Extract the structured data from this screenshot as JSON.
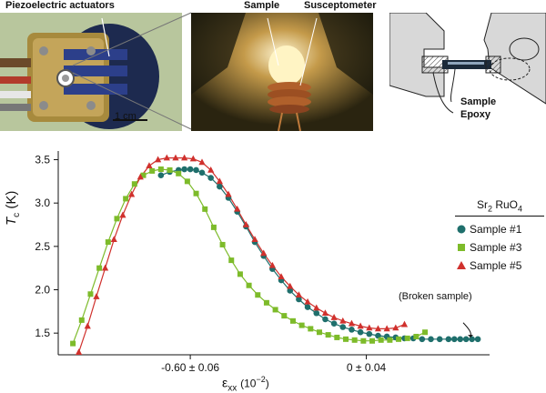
{
  "photos": {
    "left": {
      "label": "Piezoelectric actuators",
      "scale": "1 cm"
    },
    "middle": {
      "label_sample": "Sample",
      "label_susceptometer": "Susceptometer"
    },
    "right": {
      "label_sample": "Sample",
      "label_epoxy": "Epoxy"
    }
  },
  "colors": {
    "sample1": "#1f6f6c",
    "sample3": "#7dbb2a",
    "sample5": "#d0312d"
  },
  "chart_data": {
    "type": "scatter",
    "title": "",
    "ylabel_main": "T",
    "ylabel_sub": "c",
    "ylabel_unit": "(K)",
    "xlabel_main": "ε",
    "xlabel_sub": "xx",
    "xlabel_unit": "(10",
    "xlabel_exp": "−2",
    "xlabel_close": ")",
    "ylim": [
      1.25,
      3.6
    ],
    "xlim": [
      -1.05,
      0.42
    ],
    "yticks": [
      1.5,
      2.0,
      2.5,
      3.0,
      3.5
    ],
    "ytick_labels": [
      "1.5",
      "2.0",
      "2.5",
      "3.0",
      "3.5"
    ],
    "xticks": [
      -0.6,
      0.0
    ],
    "xtick_labels": [
      "-0.60 ± 0.06",
      "0 ± 0.04"
    ],
    "legend_title": "Sr",
    "legend_title_sub": "2",
    "legend_title_rest": " RuO",
    "legend_title_sub2": "4",
    "legend_position": "right",
    "annotation": "(Broken sample)",
    "series": [
      {
        "name": "Sample #1",
        "marker": "circle",
        "color": "#1f6f6c",
        "x": [
          -0.7,
          -0.67,
          -0.64,
          -0.62,
          -0.6,
          -0.58,
          -0.56,
          -0.53,
          -0.5,
          -0.47,
          -0.44,
          -0.41,
          -0.38,
          -0.35,
          -0.32,
          -0.29,
          -0.26,
          -0.23,
          -0.2,
          -0.17,
          -0.14,
          -0.11,
          -0.08,
          -0.05,
          -0.02,
          0.01,
          0.04,
          0.07,
          0.1,
          0.13,
          0.16,
          0.19,
          0.22,
          0.25,
          0.28,
          0.3,
          0.32,
          0.34,
          0.36,
          0.38
        ],
        "y": [
          3.32,
          3.36,
          3.38,
          3.39,
          3.39,
          3.38,
          3.35,
          3.29,
          3.19,
          3.06,
          2.9,
          2.73,
          2.55,
          2.39,
          2.24,
          2.11,
          1.99,
          1.89,
          1.8,
          1.73,
          1.66,
          1.61,
          1.57,
          1.54,
          1.51,
          1.49,
          1.47,
          1.46,
          1.45,
          1.44,
          1.44,
          1.43,
          1.43,
          1.43,
          1.43,
          1.43,
          1.43,
          1.43,
          1.43,
          1.43
        ]
      },
      {
        "name": "Sample #3",
        "marker": "square",
        "color": "#7dbb2a",
        "x": [
          -1.0,
          -0.97,
          -0.94,
          -0.91,
          -0.88,
          -0.85,
          -0.82,
          -0.79,
          -0.76,
          -0.73,
          -0.7,
          -0.67,
          -0.64,
          -0.61,
          -0.58,
          -0.55,
          -0.52,
          -0.49,
          -0.46,
          -0.43,
          -0.4,
          -0.37,
          -0.34,
          -0.31,
          -0.28,
          -0.25,
          -0.22,
          -0.19,
          -0.16,
          -0.13,
          -0.1,
          -0.07,
          -0.04,
          -0.01,
          0.02,
          0.05,
          0.08,
          0.11,
          0.14,
          0.17,
          0.2
        ],
        "y": [
          1.38,
          1.65,
          1.95,
          2.25,
          2.55,
          2.82,
          3.05,
          3.22,
          3.32,
          3.37,
          3.39,
          3.38,
          3.34,
          3.25,
          3.11,
          2.93,
          2.72,
          2.52,
          2.34,
          2.18,
          2.05,
          1.94,
          1.85,
          1.77,
          1.7,
          1.64,
          1.59,
          1.55,
          1.51,
          1.48,
          1.45,
          1.43,
          1.42,
          1.41,
          1.41,
          1.42,
          1.42,
          1.43,
          1.44,
          1.46,
          1.51
        ]
      },
      {
        "name": "Sample #5",
        "marker": "triangle",
        "color": "#d0312d",
        "x": [
          -0.98,
          -0.95,
          -0.92,
          -0.89,
          -0.86,
          -0.83,
          -0.8,
          -0.77,
          -0.74,
          -0.71,
          -0.68,
          -0.65,
          -0.62,
          -0.59,
          -0.56,
          -0.53,
          -0.5,
          -0.47,
          -0.44,
          -0.41,
          -0.38,
          -0.35,
          -0.32,
          -0.29,
          -0.26,
          -0.23,
          -0.2,
          -0.17,
          -0.14,
          -0.11,
          -0.08,
          -0.05,
          -0.02,
          0.01,
          0.04,
          0.07,
          0.1,
          0.13
        ],
        "y": [
          1.28,
          1.58,
          1.92,
          2.25,
          2.58,
          2.86,
          3.1,
          3.3,
          3.43,
          3.5,
          3.52,
          3.52,
          3.52,
          3.51,
          3.47,
          3.38,
          3.25,
          3.1,
          2.93,
          2.75,
          2.58,
          2.42,
          2.28,
          2.15,
          2.04,
          1.94,
          1.86,
          1.79,
          1.73,
          1.68,
          1.64,
          1.61,
          1.58,
          1.56,
          1.55,
          1.55,
          1.56,
          1.6
        ]
      }
    ]
  }
}
